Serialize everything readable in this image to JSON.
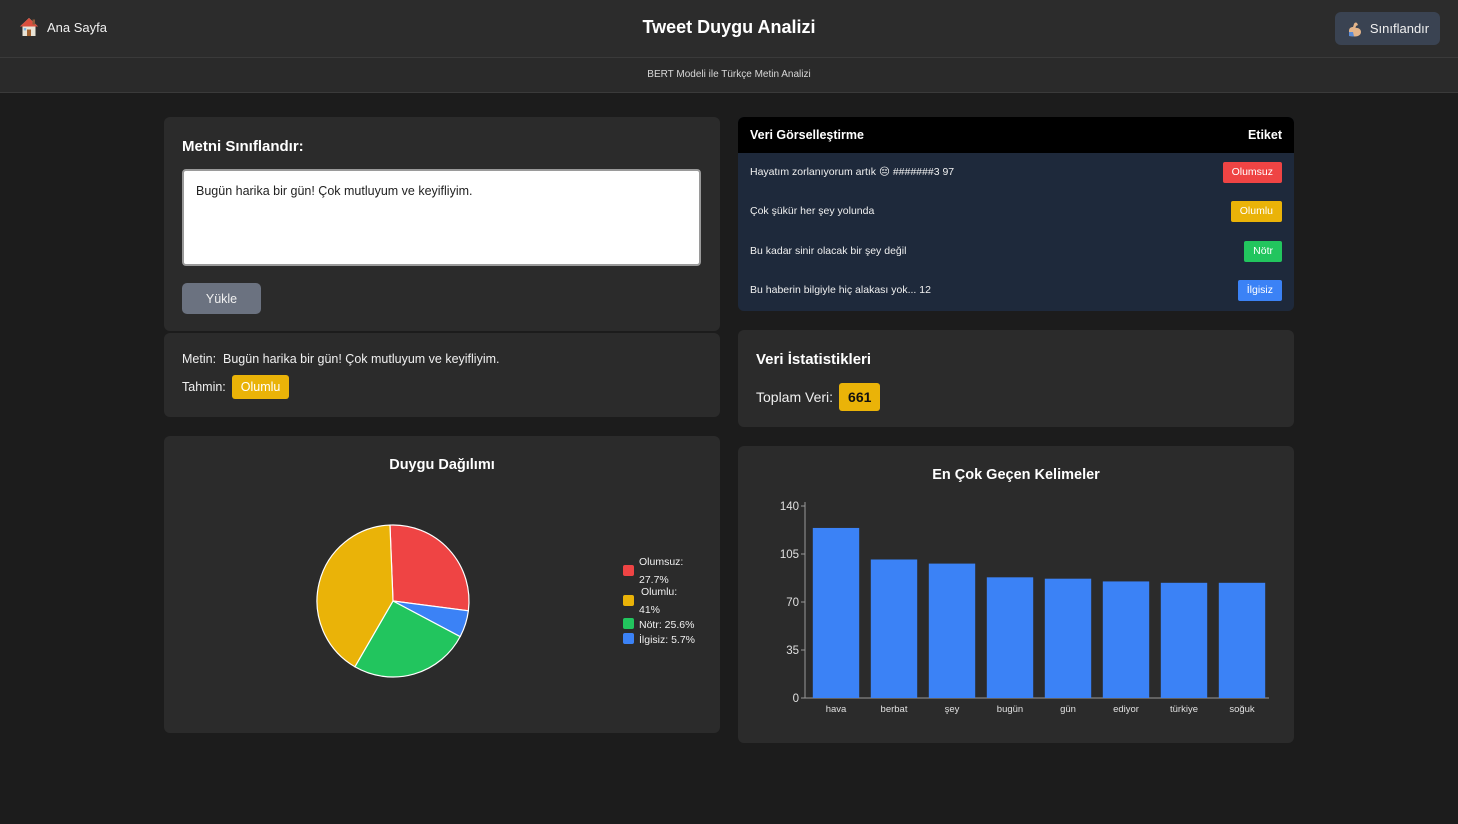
{
  "header": {
    "home_label": "Ana Sayfa",
    "home_icon": "home-icon",
    "title": "Tweet Duygu Analizi",
    "classify_label": "Sınıflandır",
    "classify_icon": "flexed-arm-icon",
    "subtitle": "BERT Modeli ile Türkçe Metin Analizi"
  },
  "classify_form": {
    "title": "Metni Sınıflandır:",
    "input_value": "Bugün harika bir gün! Çok mutluyum ve keyifliyim.",
    "upload_label": "Yükle"
  },
  "result": {
    "text_label": "Metin:",
    "text_value": "Bugün harika bir gün! Çok mutluyum ve keyifliyim.",
    "prediction_label": "Tahmin:",
    "prediction_value": "Olumlu",
    "prediction_color": "#eab308"
  },
  "table": {
    "col_text": "Veri Görselleştirme",
    "col_label": "Etiket",
    "rows": [
      {
        "text": "Hayatım zorlanıyorum artık 😔 #######3 97",
        "label": "Olumsuz",
        "color": "#ef4444"
      },
      {
        "text": "Çok şükür her şey yolunda",
        "label": "Olumlu",
        "color": "#eab308"
      },
      {
        "text": "Bu kadar sinir olacak bir şey değil",
        "label": "Nötr",
        "color": "#22c55e"
      },
      {
        "text": "Bu haberin bilgiyle hiç alakası yok... 12",
        "label": "İlgisiz",
        "color": "#3b82f6"
      }
    ]
  },
  "stats": {
    "title": "Veri İstatistikleri",
    "total_label": "Toplam Veri:",
    "total_value": "661"
  },
  "chart_data": [
    {
      "type": "pie",
      "title": "Duygu Dağılımı",
      "legend_position": "right",
      "slices": [
        {
          "name": "Olumsuz",
          "value": 27.7,
          "legend_line1": "Olumsuz:",
          "legend_line2": "27.7%",
          "color": "#ef4444"
        },
        {
          "name": "Olumlu",
          "value": 41,
          "legend_line1": "Olumlu:",
          "legend_line2": "41%",
          "color": "#eab308"
        },
        {
          "name": "Nötr",
          "value": 25.6,
          "legend_line1": "Nötr: 25.6%",
          "legend_line2": "",
          "color": "#22c55e"
        },
        {
          "name": "İlgisiz",
          "value": 5.7,
          "legend_line1": "İlgisiz: 5.7%",
          "legend_line2": "",
          "color": "#3b82f6"
        }
      ]
    },
    {
      "type": "bar",
      "title": "En Çok Geçen Kelimeler",
      "categories": [
        "hava",
        "berbat",
        "şey",
        "bugün",
        "gün",
        "ediyor",
        "türkiye",
        "soğuk"
      ],
      "values": [
        124,
        101,
        98,
        88,
        87,
        85,
        84,
        84
      ],
      "ylim": [
        0,
        140
      ],
      "yticks": [
        0,
        35,
        70,
        105,
        140
      ],
      "bar_color": "#3b82f6",
      "grid": false
    }
  ]
}
